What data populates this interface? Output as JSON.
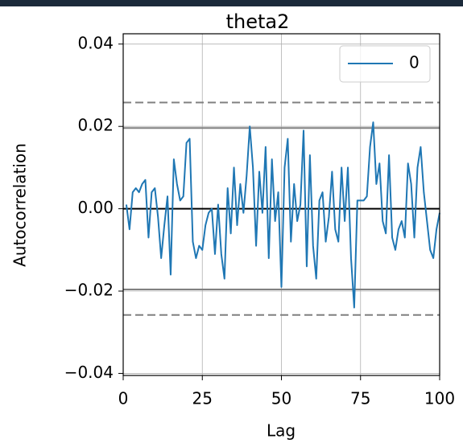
{
  "chart_data": {
    "type": "line",
    "title": "theta2",
    "xlabel": "Lag",
    "ylabel": "Autocorrelation",
    "x": [
      1,
      2,
      3,
      4,
      5,
      6,
      7,
      8,
      9,
      10,
      11,
      12,
      13,
      14,
      15,
      16,
      17,
      18,
      19,
      20,
      21,
      22,
      23,
      24,
      25,
      26,
      27,
      28,
      29,
      30,
      31,
      32,
      33,
      34,
      35,
      36,
      37,
      38,
      39,
      40,
      41,
      42,
      43,
      44,
      45,
      46,
      47,
      48,
      49,
      50,
      51,
      52,
      53,
      54,
      55,
      56,
      57,
      58,
      59,
      60,
      61,
      62,
      63,
      64,
      65,
      66,
      67,
      68,
      69,
      70,
      71,
      72,
      73,
      74,
      75,
      76,
      77,
      78,
      79,
      80,
      81,
      82,
      83,
      84,
      85,
      86,
      87,
      88,
      89,
      90,
      91,
      92,
      93,
      94,
      95,
      96,
      97,
      98,
      99,
      100
    ],
    "series": [
      {
        "name": "0",
        "color": "#1f77b4",
        "values": [
          0.001,
          -0.005,
          0.004,
          0.005,
          0.004,
          0.006,
          0.007,
          -0.007,
          0.004,
          0.005,
          -0.002,
          -0.012,
          -0.004,
          0.003,
          -0.016,
          0.012,
          0.006,
          0.002,
          0.003,
          0.016,
          0.017,
          -0.008,
          -0.012,
          -0.009,
          -0.01,
          -0.004,
          -0.001,
          0.0,
          -0.011,
          0.001,
          -0.011,
          -0.017,
          0.005,
          -0.006,
          0.01,
          -0.004,
          0.006,
          -0.001,
          0.008,
          0.02,
          0.01,
          -0.009,
          0.009,
          -0.001,
          0.015,
          -0.012,
          0.012,
          -0.003,
          0.004,
          -0.019,
          0.01,
          0.017,
          -0.008,
          0.006,
          -0.003,
          0.001,
          0.019,
          -0.014,
          0.013,
          -0.009,
          -0.017,
          0.002,
          0.004,
          -0.008,
          -0.002,
          0.009,
          -0.005,
          -0.008,
          0.01,
          -0.003,
          0.01,
          -0.012,
          -0.024,
          0.002,
          0.002,
          0.002,
          0.003,
          0.015,
          0.021,
          0.006,
          0.011,
          -0.003,
          -0.006,
          0.013,
          -0.007,
          -0.01,
          -0.005,
          -0.003,
          -0.007,
          0.011,
          0.006,
          -0.007,
          0.01,
          0.015,
          0.004,
          -0.003,
          -0.01,
          -0.012,
          -0.005,
          -0.001
        ]
      }
    ],
    "hlines": [
      {
        "value": 0.0258,
        "color": "#808080",
        "style": "dashed"
      },
      {
        "value": 0.0196,
        "color": "#808080",
        "style": "solid"
      },
      {
        "value": 0,
        "color": "#000000",
        "style": "solid"
      },
      {
        "value": -0.0196,
        "color": "#808080",
        "style": "solid"
      },
      {
        "value": -0.0258,
        "color": "#808080",
        "style": "dashed"
      }
    ],
    "xlim": [
      0,
      100
    ],
    "xticks": [
      0,
      25,
      50,
      75,
      100
    ],
    "ylim": [
      -0.0405,
      0.0425
    ],
    "yticks": [
      {
        "value": -0.04,
        "label": "−0.04"
      },
      {
        "value": -0.02,
        "label": "−0.02"
      },
      {
        "value": 0,
        "label": "0.00"
      },
      0.02,
      0.04
    ],
    "grid": true,
    "legend": "upper right"
  }
}
